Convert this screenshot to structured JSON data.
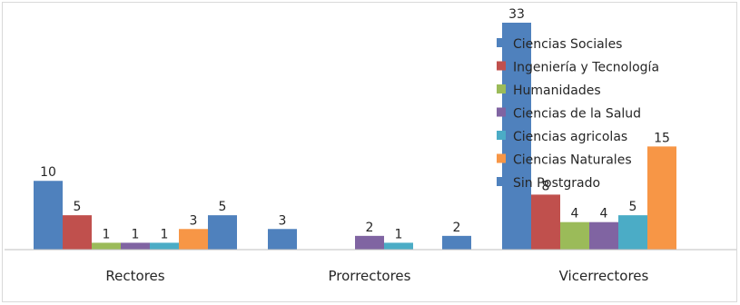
{
  "chart_data": {
    "type": "bar",
    "categories": [
      "Rectores",
      "Prorrectores",
      "Vicerrectores"
    ],
    "series": [
      {
        "name": "Ciencias Sociales",
        "color": "#4f81bd",
        "values": [
          10,
          3,
          33
        ]
      },
      {
        "name": "Ingeniería y Tecnología",
        "color": "#c0504d",
        "values": [
          5,
          null,
          8
        ]
      },
      {
        "name": "Humanidades",
        "color": "#9bbb59",
        "values": [
          1,
          null,
          4
        ]
      },
      {
        "name": "Ciencias de la Salud",
        "color": "#8064a2",
        "values": [
          1,
          2,
          4
        ]
      },
      {
        "name": "Ciencias agricolas",
        "color": "#4bacc6",
        "values": [
          1,
          1,
          5
        ]
      },
      {
        "name": "Ciencias Naturales",
        "color": "#f79646",
        "values": [
          3,
          null,
          15
        ]
      },
      {
        "name": "Sin Postgrado",
        "color": "#4f81bd",
        "values": [
          5,
          2,
          null
        ]
      }
    ],
    "ylim": [
      0,
      33
    ],
    "grid": false,
    "legend_position": "top-right, overlapping plot"
  }
}
